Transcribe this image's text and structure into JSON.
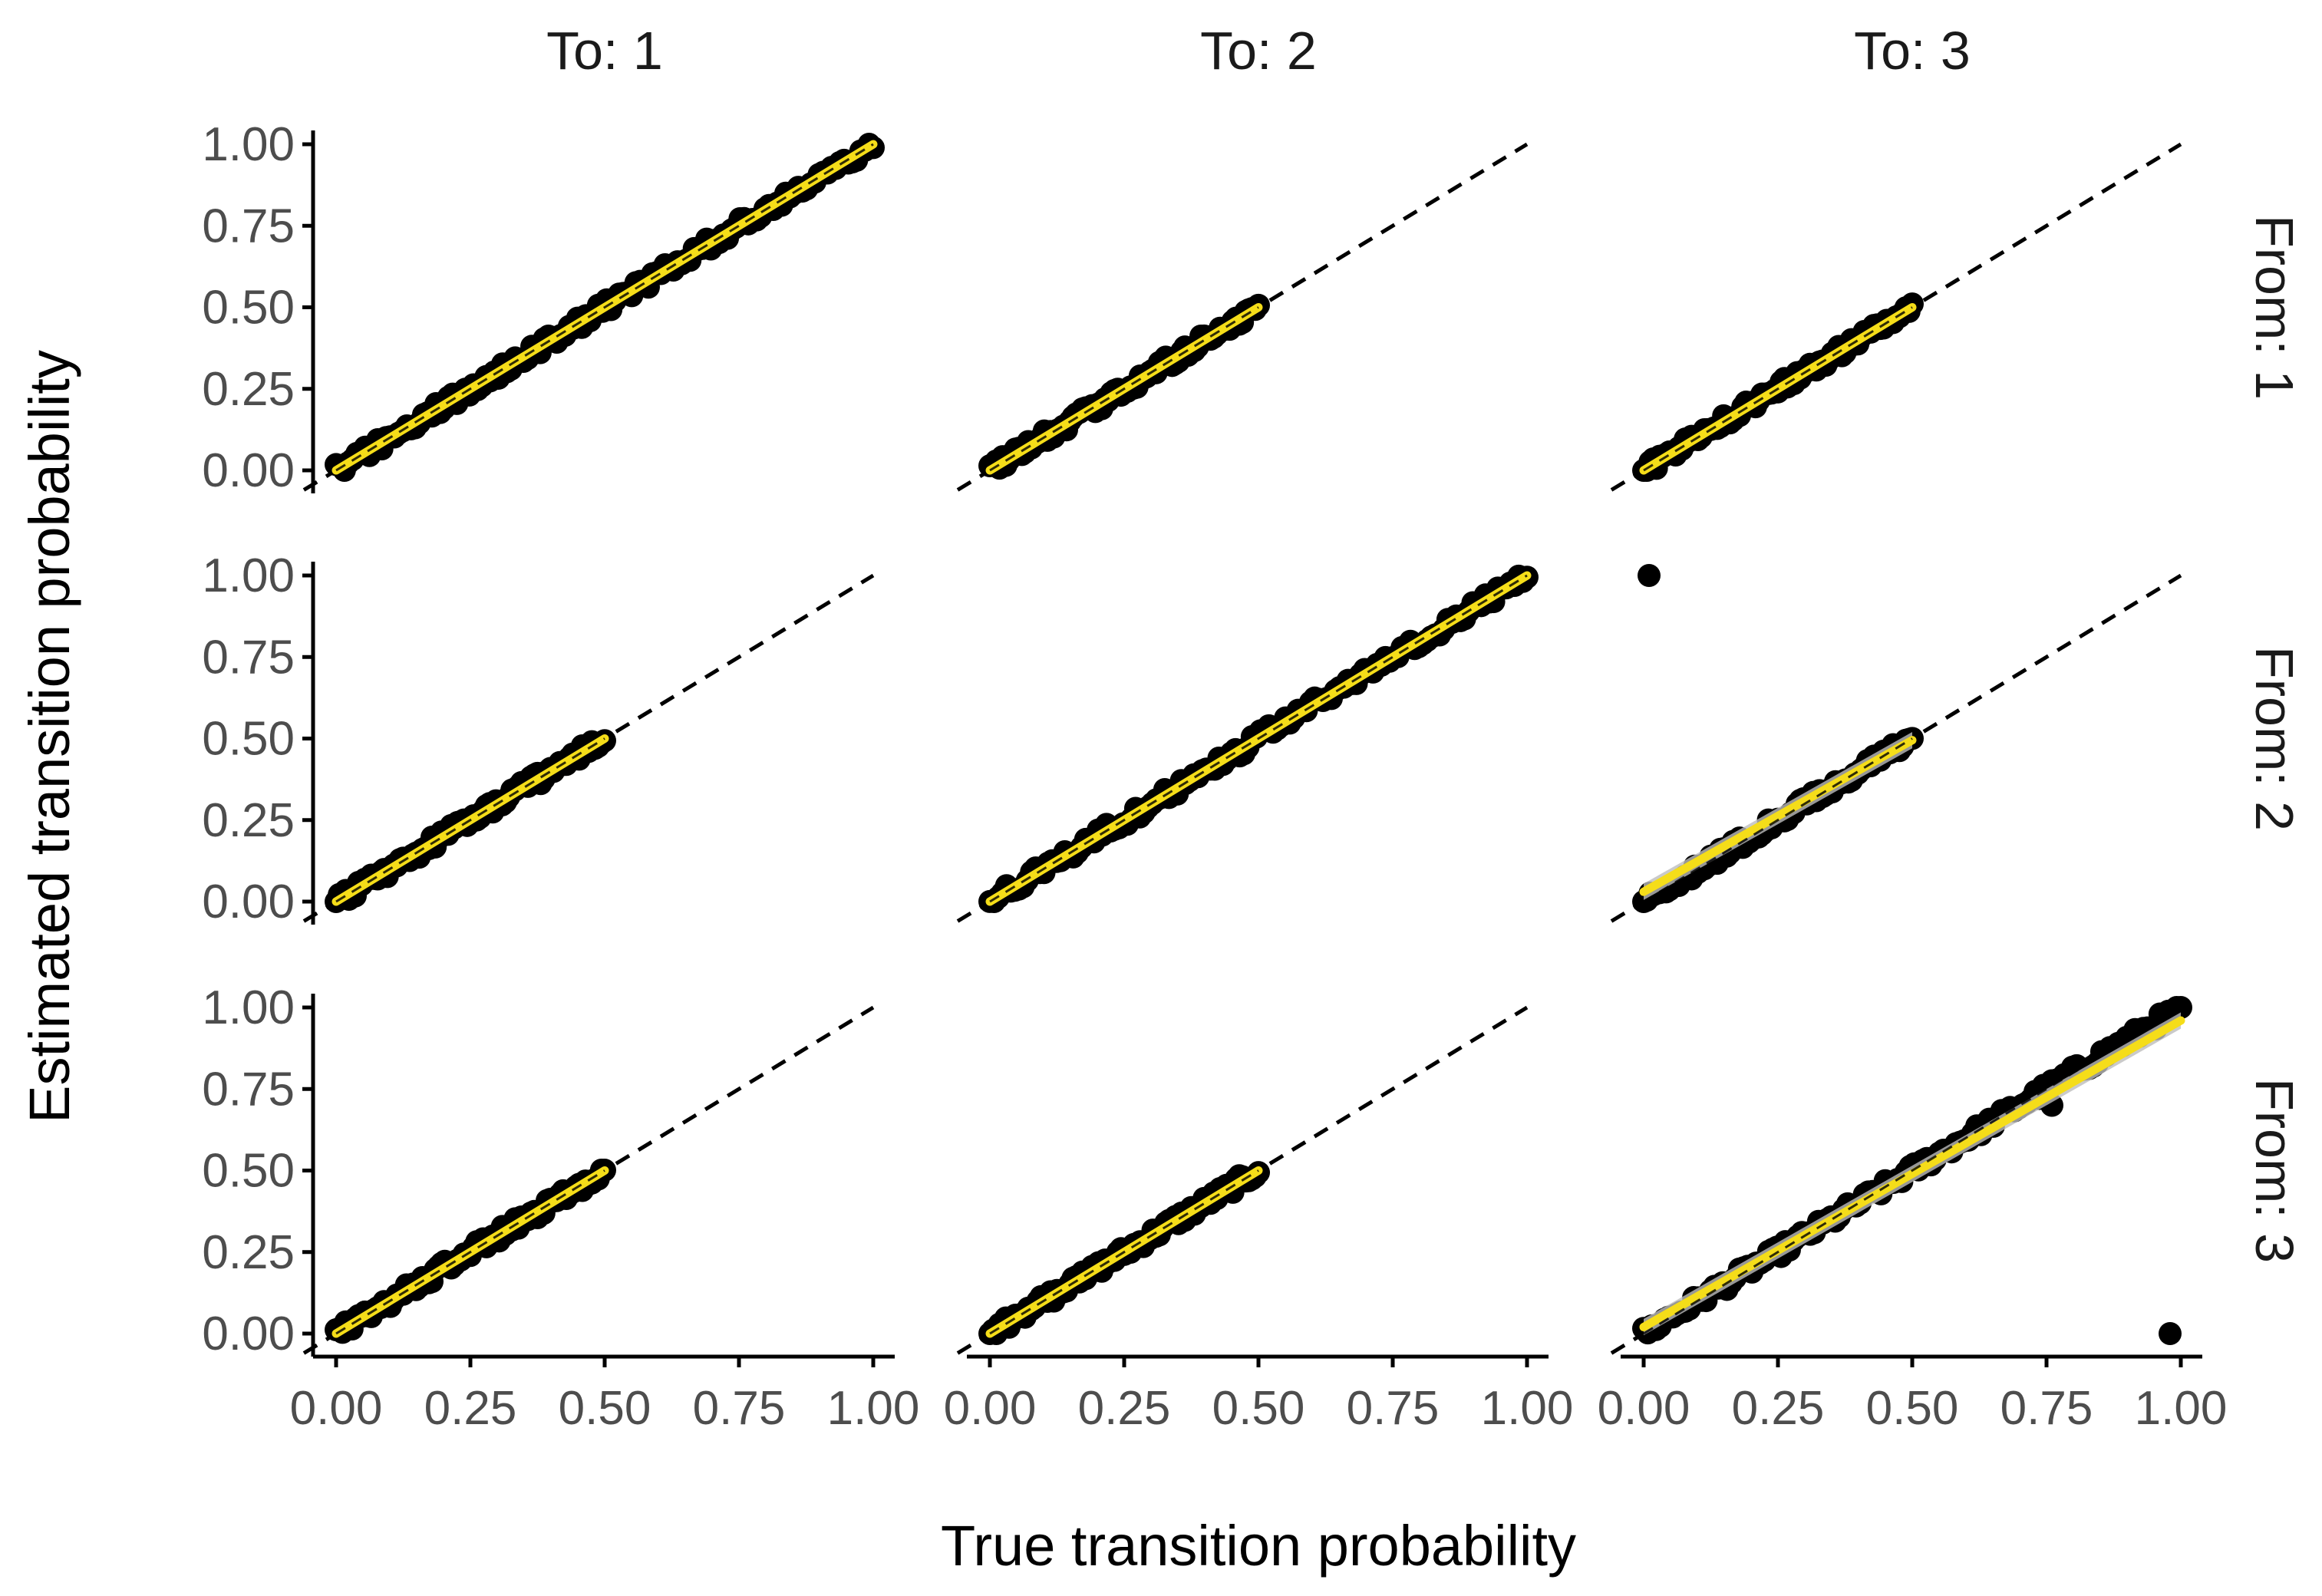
{
  "chart_data": {
    "type": "scatter",
    "layout": "facet-grid 3x3",
    "xlabel": "True transition probability",
    "ylabel": "Estimated transition probability",
    "col_strips": [
      "To: 1",
      "To: 2",
      "To: 3"
    ],
    "row_strips": [
      "From: 1",
      "From: 2",
      "From: 3"
    ],
    "xlim": [
      0,
      1
    ],
    "ylim": [
      0,
      1
    ],
    "x_ticks": [
      0,
      0.25,
      0.5,
      0.75,
      1
    ],
    "x_tick_labels": [
      "0.00",
      "0.25",
      "0.50",
      "0.75",
      "1.00"
    ],
    "y_ticks": [
      0,
      0.25,
      0.5,
      0.75,
      1
    ],
    "y_tick_labels": [
      "0.00",
      "0.25",
      "0.50",
      "0.75",
      "1.00"
    ],
    "reference_line": "identity (y = x), black dashed",
    "fit_line": "linear fit, yellow with grey confidence band",
    "colors": {
      "points": "#000000",
      "fit": "#f5dd19",
      "band": "#bdbdbd",
      "reference": "#000000",
      "axis": "#000000"
    },
    "panels": [
      {
        "from": 1,
        "to": 1,
        "x_range": [
          0.0,
          1.0
        ],
        "fit": {
          "intercept": 0.0,
          "slope": 1.0
        },
        "outliers": []
      },
      {
        "from": 1,
        "to": 2,
        "x_range": [
          0.0,
          0.5
        ],
        "fit": {
          "intercept": 0.0,
          "slope": 1.0
        },
        "outliers": []
      },
      {
        "from": 1,
        "to": 3,
        "x_range": [
          0.0,
          0.5
        ],
        "fit": {
          "intercept": 0.0,
          "slope": 1.0
        },
        "outliers": []
      },
      {
        "from": 2,
        "to": 1,
        "x_range": [
          0.0,
          0.5
        ],
        "fit": {
          "intercept": 0.0,
          "slope": 1.0
        },
        "outliers": []
      },
      {
        "from": 2,
        "to": 2,
        "x_range": [
          0.0,
          1.0
        ],
        "fit": {
          "intercept": 0.0,
          "slope": 1.0
        },
        "outliers": []
      },
      {
        "from": 2,
        "to": 3,
        "x_range": [
          0.0,
          0.5
        ],
        "fit": {
          "intercept": 0.03,
          "slope": 0.93
        },
        "outliers": [
          {
            "x": 0.01,
            "y": 1.0
          }
        ]
      },
      {
        "from": 3,
        "to": 1,
        "x_range": [
          0.0,
          0.5
        ],
        "fit": {
          "intercept": 0.0,
          "slope": 1.0
        },
        "outliers": []
      },
      {
        "from": 3,
        "to": 2,
        "x_range": [
          0.0,
          0.5
        ],
        "fit": {
          "intercept": 0.0,
          "slope": 1.0
        },
        "outliers": []
      },
      {
        "from": 3,
        "to": 3,
        "x_range": [
          0.0,
          1.0
        ],
        "fit": {
          "intercept": 0.02,
          "slope": 0.94
        },
        "outliers": [
          {
            "x": 0.76,
            "y": 0.7
          },
          {
            "x": 0.98,
            "y": 0.0
          }
        ]
      }
    ]
  }
}
